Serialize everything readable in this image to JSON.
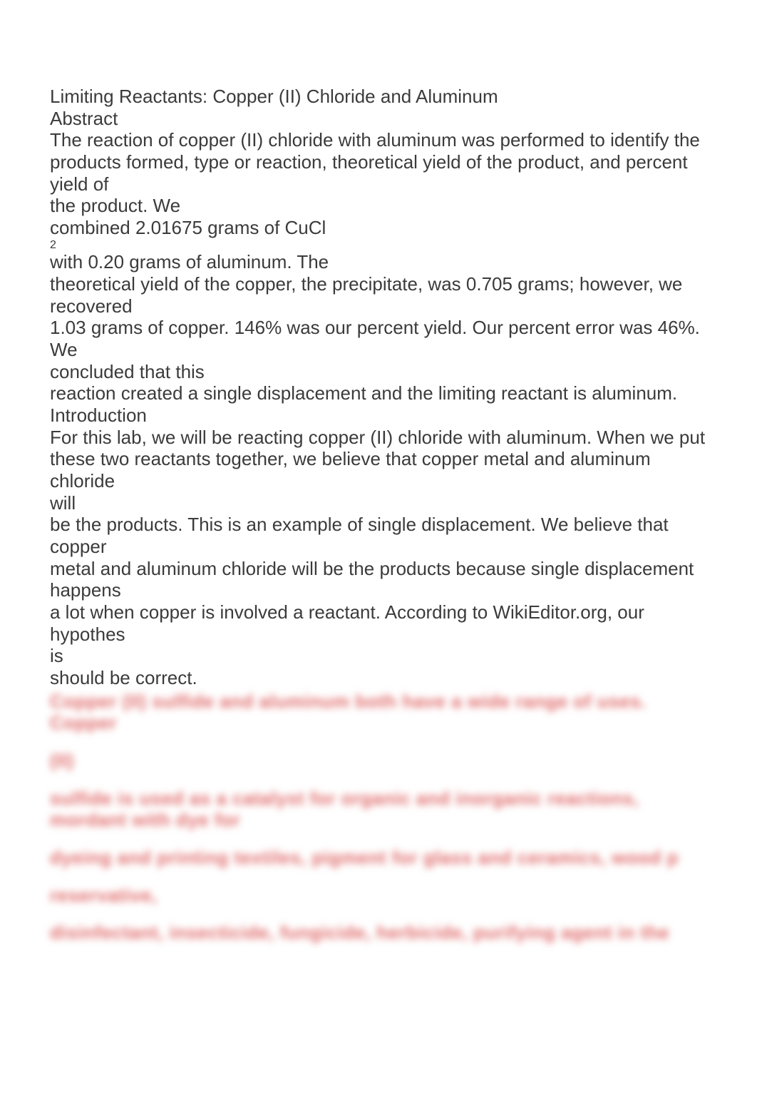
{
  "doc": {
    "lines": [
      "Limiting Reactants: Copper (II) Chloride and Aluminum",
      "Abstract",
      "The reaction of copper (II) chloride with aluminum was performed to identify the",
      "products formed, type or reaction, theoretical yield of the product, and percent yield of",
      "the product. We",
      "combined 2.01675 grams of CuCl"
    ],
    "subscript": "2",
    "lines2": [
      "with 0.20 grams of aluminum. The",
      "theoretical yield of the copper, the precipitate, was 0.705 grams; however, we recovered",
      "1.03 grams of copper. 146% was our percent yield. Our percent error was 46%. We",
      "concluded that this",
      "reaction created a single displacement and the limiting reactant is aluminum.",
      "Introduction",
      "For this lab, we will be reacting copper (II) chloride with aluminum. When we put",
      "these two reactants together, we believe that copper metal and aluminum chloride",
      "will",
      "be the products. This is an example of single displacement. We believe that copper",
      "metal and aluminum chloride will be the products because single displacement happens",
      "a lot when copper is involved a reactant. According to WikiEditor.org, our hypothes",
      "is",
      "should be correct."
    ],
    "blurred": [
      "Copper (II) sulfide and aluminum both have a wide range of uses. Copper",
      "(II)",
      "sulfide is used as a catalyst for organic and inorganic reactions, mordant with dye for",
      "dyeing and printing textiles, pigment for glass and ceramics, wood p",
      "reservative,",
      "disinfectant, insecticide, fungicide, herbicide, purifying agent in the"
    ]
  }
}
